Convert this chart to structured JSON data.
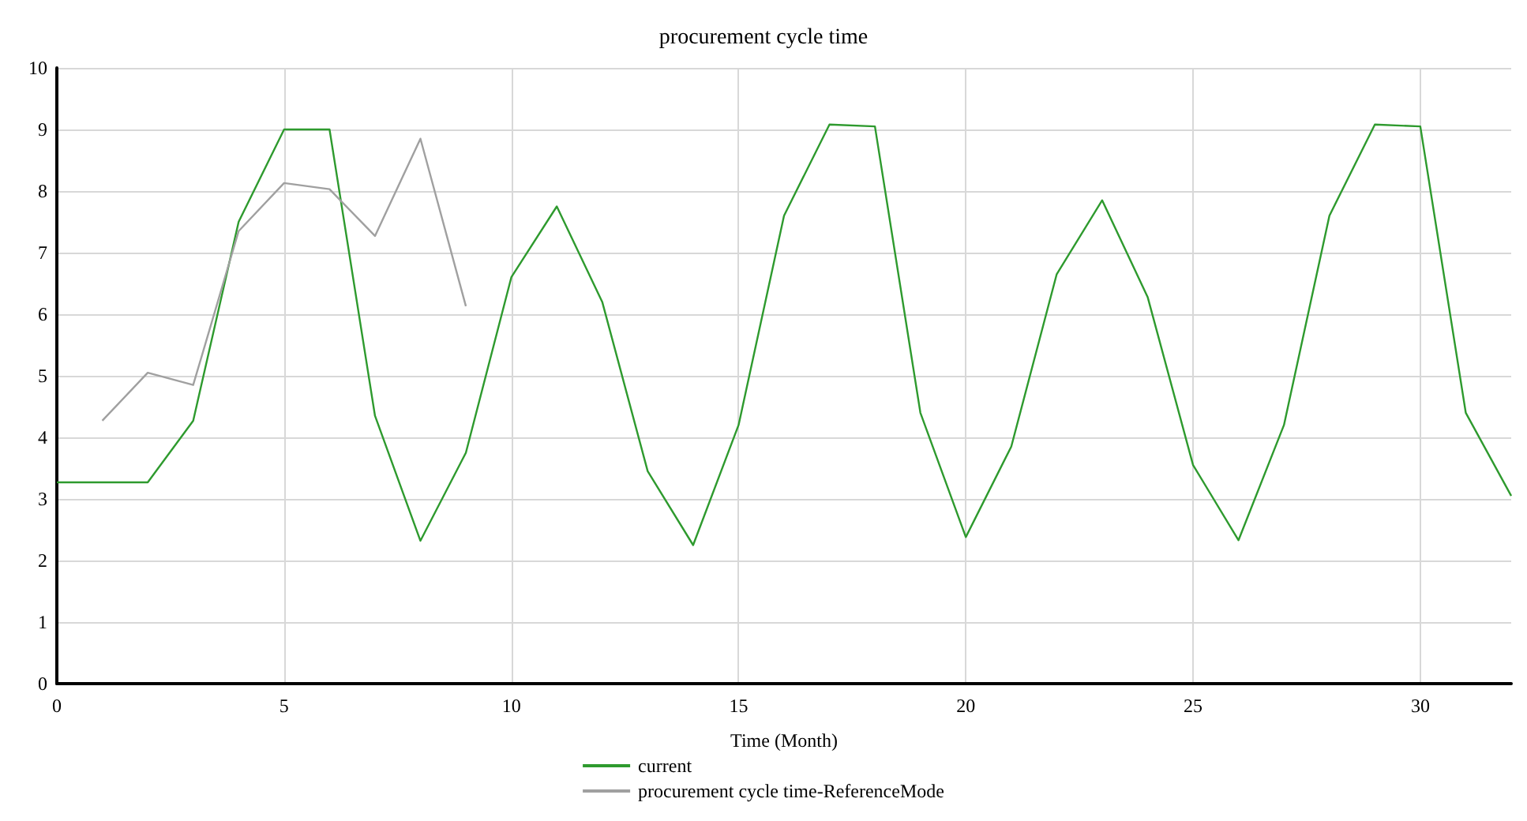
{
  "chart_data": {
    "type": "line",
    "title": "procurement cycle time",
    "xlabel": "Time (Month)",
    "xlim": [
      0,
      32
    ],
    "xticks": [
      0,
      5,
      10,
      15,
      20,
      25,
      30
    ],
    "ylim": [
      0,
      10
    ],
    "yticks": [
      0,
      1,
      2,
      3,
      4,
      5,
      6,
      7,
      8,
      9,
      10
    ],
    "grid": true,
    "legend": "bottom",
    "marker": "none",
    "series": [
      {
        "name": "current",
        "color": "#2e9a2e",
        "x": [
          0,
          1,
          2,
          3,
          4,
          5,
          6,
          7,
          8,
          9,
          10,
          11,
          12,
          13,
          14,
          15,
          16,
          17,
          18,
          19,
          20,
          21,
          22,
          23,
          24,
          25,
          26,
          27,
          28,
          29,
          30,
          31,
          32
        ],
        "values": [
          3.27,
          3.27,
          3.27,
          4.27,
          7.5,
          9.0,
          9.0,
          4.35,
          2.32,
          3.75,
          6.6,
          7.75,
          6.2,
          3.45,
          2.25,
          4.2,
          7.6,
          9.08,
          9.05,
          4.4,
          2.38,
          3.85,
          6.65,
          7.85,
          6.28,
          3.55,
          2.33,
          4.2,
          7.6,
          9.08,
          9.05,
          4.4,
          3.05
        ]
      },
      {
        "name": "procurement cycle time-ReferenceMode",
        "color": "#a0a0a0",
        "x": [
          1,
          2,
          3,
          4,
          5,
          6,
          7,
          8,
          9
        ],
        "values": [
          4.27,
          5.05,
          4.85,
          7.35,
          8.13,
          8.03,
          7.27,
          8.85,
          6.13
        ]
      }
    ]
  }
}
